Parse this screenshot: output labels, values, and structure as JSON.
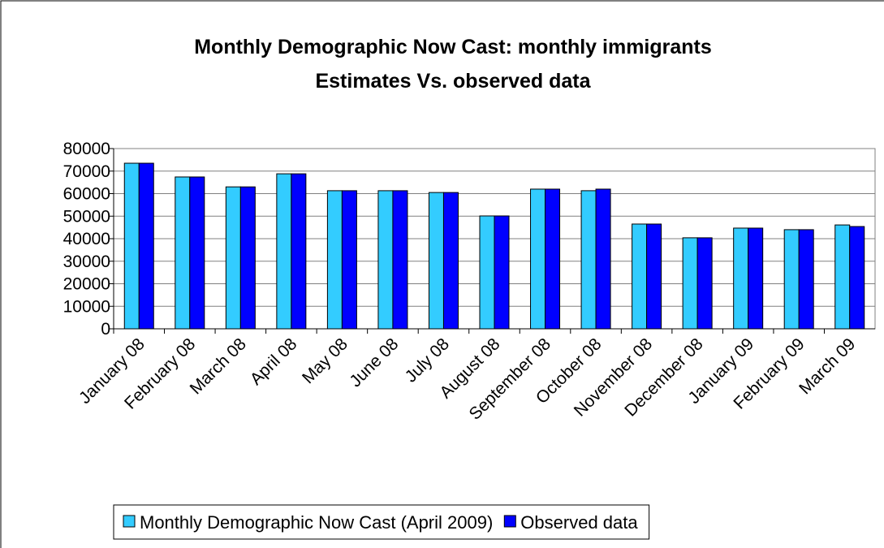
{
  "chart_data": {
    "type": "bar",
    "title": [
      "Monthly Demographic Now Cast: monthly immigrants",
      "Estimates Vs. observed data"
    ],
    "categories": [
      "January 08",
      "February 08",
      "March 08",
      "April 08",
      "May 08",
      "June 08",
      "July 08",
      "August 08",
      "September 08",
      "October 08",
      "November 08",
      "December 08",
      "January 09",
      "February 09",
      "March 09"
    ],
    "series": [
      {
        "name": "Monthly Demographic Now Cast (April 2009)",
        "color": "#33ccff",
        "values": [
          73500,
          67400,
          63000,
          68800,
          61300,
          61300,
          60500,
          50100,
          62000,
          61300,
          46500,
          40400,
          44700,
          44000,
          46100
        ]
      },
      {
        "name": "Observed data",
        "color": "#0000ff",
        "values": [
          73500,
          67400,
          63000,
          68800,
          61300,
          61300,
          60500,
          50100,
          62000,
          62000,
          46500,
          40400,
          44700,
          44000,
          45400
        ]
      }
    ],
    "ylim": [
      0,
      80000
    ],
    "yticks": [
      0,
      10000,
      20000,
      30000,
      40000,
      50000,
      60000,
      70000,
      80000
    ],
    "grid": true,
    "legend": "bottom"
  }
}
